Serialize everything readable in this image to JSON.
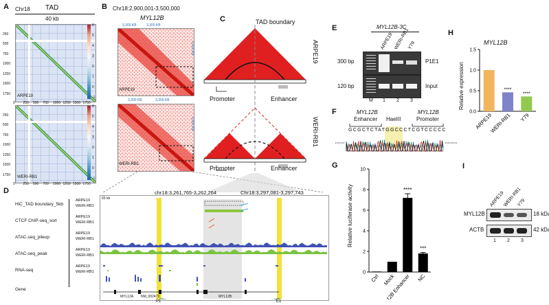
{
  "panels": {
    "A": "A",
    "B": "B",
    "C": "C",
    "D": "D",
    "E": "E",
    "F": "F",
    "G": "G",
    "H": "H",
    "I": "I"
  },
  "panel_a": {
    "chrom": "Chr18",
    "title": "TAD",
    "resolution": "40 kb",
    "ticks": [
      "250",
      "500",
      "750",
      "1000",
      "1250",
      "1500",
      "1750"
    ],
    "xticks": [
      "0",
      "250",
      "500",
      "750",
      "1000",
      "1250",
      "1500",
      "1750"
    ],
    "colorbar": [
      "6",
      "5",
      "4",
      "3",
      "2",
      "1",
      "0",
      "-1"
    ],
    "cells": [
      "ARPE19",
      "WERI-RB1"
    ]
  },
  "panel_b": {
    "region": "Chr18:2,900,001-3,500,000",
    "gene": "MYL12B",
    "top_ticks": [
      "3,300 KB",
      "3,300 KB"
    ],
    "side_ticks": [
      "3,300 KB",
      "3,300 KB"
    ],
    "cells": [
      "ARPE19",
      "WERI-RB1"
    ]
  },
  "panel_c": {
    "boundary": "TAD boundary",
    "cells": [
      "ARPE19",
      "WERI-RB1"
    ],
    "promoter": "Promoter",
    "enhancer": "Enhancer"
  },
  "panel_d": {
    "scale": "65 kb",
    "coord1": "chr18:3,261,765-3,262,264",
    "coord2": "Chr18:3,297,081-3,297,743",
    "tracks": [
      {
        "name": "HiC_TAD boundary_5kb",
        "subs": [
          "ARPE19",
          "WERI-RB1"
        ]
      },
      {
        "name": "CTCF ChIP-seq_sort",
        "subs": [
          "ARPE19",
          "WERI-RB1"
        ]
      },
      {
        "name": "ATAC-seq_pileup",
        "subs": [
          "ARPE19",
          "WERI-RB1"
        ]
      },
      {
        "name": "ATAC-seq_peak",
        "subs": [
          "ARPE19",
          "WERI-RB1"
        ]
      },
      {
        "name": "RNA-seq",
        "subs": [
          "ARPE19",
          "WERI-RB1"
        ]
      },
      {
        "name": "Gene",
        "subs": []
      }
    ],
    "genes": [
      "MYL12A",
      "MYL12B",
      "NM_002473"
    ],
    "markers": [
      "P1",
      "E1"
    ]
  },
  "panel_e": {
    "title": "MYL12B-3C",
    "lanes": [
      "ARPE19",
      "WERI-RB1",
      "Y79"
    ],
    "lane_numbers": [
      "M",
      "1",
      "2",
      "3"
    ],
    "sizes": [
      "300 bp",
      "120 bp"
    ],
    "bands": [
      "P1E1",
      "Input"
    ]
  },
  "panel_f": {
    "enhancer_label": "MYL12B",
    "enhancer_sub": "Enhancer",
    "site": "HaeIII",
    "promoter_label": "MYL12B",
    "promoter_sub": "Promoter",
    "sequence": "GCGCTCTATGGCCCTCGTCCCCC"
  },
  "panel_g": {
    "ylabel": "Relative luciferase activity",
    "sig": [
      "****",
      "***"
    ]
  },
  "panel_h": {
    "title": "MYL12B",
    "ylabel": "Relative expression",
    "sig": [
      "****",
      "****"
    ]
  },
  "panel_i": {
    "cells": [
      "ARPE19",
      "WERI-RB1",
      "Y79"
    ],
    "proteins": [
      "MYL12B",
      "ACTB"
    ],
    "sizes": [
      "18 kDa",
      "42 kDa"
    ],
    "lanes": [
      "1",
      "2",
      "3"
    ]
  },
  "chart_data": [
    {
      "type": "bar",
      "panel": "G",
      "categories": [
        "Ctrl",
        "Mock",
        "MYL12B Enhancer",
        "NC"
      ],
      "values": [
        0.05,
        1.0,
        7.2,
        1.8
      ],
      "errors": [
        0.0,
        0.0,
        0.4,
        0.1
      ],
      "ylabel": "Relative luciferase activity",
      "ylim": [
        0,
        10
      ],
      "yticks": [
        0,
        2,
        4,
        6,
        8,
        10
      ],
      "colors": [
        "#000000",
        "#000000",
        "#000000",
        "#000000"
      ]
    },
    {
      "type": "bar",
      "panel": "H",
      "title": "MYL12B",
      "categories": [
        "ARPE19",
        "WERI-RB1",
        "Y79"
      ],
      "values": [
        1.0,
        0.46,
        0.36
      ],
      "ylabel": "Relative expression",
      "ylim": [
        0,
        1.5
      ],
      "yticks": [
        0.0,
        0.5,
        1.0,
        1.5
      ],
      "colors": [
        "#f2b45c",
        "#7f83c8",
        "#93c94f"
      ]
    }
  ]
}
